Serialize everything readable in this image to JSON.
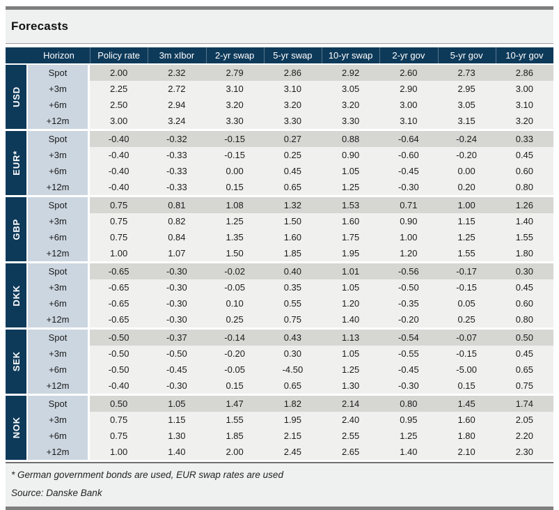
{
  "page": {
    "title": "Forecasts"
  },
  "table": {
    "headers": [
      "Horizon",
      "Policy rate",
      "3m xIbor",
      "2-yr swap",
      "5-yr swap",
      "10-yr swap",
      "2-yr gov",
      "5-yr gov",
      "10-yr gov"
    ],
    "groups": [
      {
        "currency": "USD",
        "rows": [
          {
            "horizon": "Spot",
            "values": [
              "2.00",
              "2.32",
              "2.79",
              "2.86",
              "2.92",
              "2.60",
              "2.73",
              "2.86"
            ]
          },
          {
            "horizon": "+3m",
            "values": [
              "2.25",
              "2.72",
              "3.10",
              "3.10",
              "3.05",
              "2.90",
              "2.95",
              "3.00"
            ]
          },
          {
            "horizon": "+6m",
            "values": [
              "2.50",
              "2.94",
              "3.20",
              "3.20",
              "3.20",
              "3.00",
              "3.05",
              "3.10"
            ]
          },
          {
            "horizon": "+12m",
            "values": [
              "3.00",
              "3.24",
              "3.30",
              "3.30",
              "3.30",
              "3.10",
              "3.15",
              "3.20"
            ]
          }
        ]
      },
      {
        "currency": "EUR*",
        "rows": [
          {
            "horizon": "Spot",
            "values": [
              "-0.40",
              "-0.32",
              "-0.15",
              "0.27",
              "0.88",
              "-0.64",
              "-0.24",
              "0.33"
            ]
          },
          {
            "horizon": "+3m",
            "values": [
              "-0.40",
              "-0.33",
              "-0.15",
              "0.25",
              "0.90",
              "-0.60",
              "-0.20",
              "0.45"
            ]
          },
          {
            "horizon": "+6m",
            "values": [
              "-0.40",
              "-0.33",
              "0.00",
              "0.45",
              "1.05",
              "-0.45",
              "0.00",
              "0.60"
            ]
          },
          {
            "horizon": "+12m",
            "values": [
              "-0.40",
              "-0.33",
              "0.15",
              "0.65",
              "1.25",
              "-0.30",
              "0.20",
              "0.80"
            ]
          }
        ]
      },
      {
        "currency": "GBP",
        "rows": [
          {
            "horizon": "Spot",
            "values": [
              "0.75",
              "0.81",
              "1.08",
              "1.32",
              "1.53",
              "0.71",
              "1.00",
              "1.26"
            ]
          },
          {
            "horizon": "+3m",
            "values": [
              "0.75",
              "0.82",
              "1.25",
              "1.50",
              "1.60",
              "0.90",
              "1.15",
              "1.40"
            ]
          },
          {
            "horizon": "+6m",
            "values": [
              "0.75",
              "0.84",
              "1.35",
              "1.60",
              "1.75",
              "1.00",
              "1.25",
              "1.55"
            ]
          },
          {
            "horizon": "+12m",
            "values": [
              "1.00",
              "1.07",
              "1.50",
              "1.85",
              "1.95",
              "1.20",
              "1.55",
              "1.80"
            ]
          }
        ]
      },
      {
        "currency": "DKK",
        "rows": [
          {
            "horizon": "Spot",
            "values": [
              "-0.65",
              "-0.30",
              "-0.02",
              "0.40",
              "1.01",
              "-0.56",
              "-0.17",
              "0.30"
            ]
          },
          {
            "horizon": "+3m",
            "values": [
              "-0.65",
              "-0.30",
              "-0.05",
              "0.35",
              "1.05",
              "-0.50",
              "-0.15",
              "0.45"
            ]
          },
          {
            "horizon": "+6m",
            "values": [
              "-0.65",
              "-0.30",
              "0.10",
              "0.55",
              "1.20",
              "-0.35",
              "0.05",
              "0.60"
            ]
          },
          {
            "horizon": "+12m",
            "values": [
              "-0.65",
              "-0.30",
              "0.25",
              "0.75",
              "1.40",
              "-0.20",
              "0.25",
              "0.80"
            ]
          }
        ]
      },
      {
        "currency": "SEK",
        "rows": [
          {
            "horizon": "Spot",
            "values": [
              "-0.50",
              "-0.37",
              "-0.14",
              "0.43",
              "1.13",
              "-0.54",
              "-0.07",
              "0.50"
            ]
          },
          {
            "horizon": "+3m",
            "values": [
              "-0.50",
              "-0.50",
              "-0.20",
              "0.30",
              "1.05",
              "-0.55",
              "-0.15",
              "0.45"
            ]
          },
          {
            "horizon": "+6m",
            "values": [
              "-0.50",
              "-0.45",
              "-0.05",
              "-4.50",
              "1.25",
              "-0.45",
              "-5.00",
              "0.65"
            ]
          },
          {
            "horizon": "+12m",
            "values": [
              "-0.40",
              "-0.30",
              "0.15",
              "0.65",
              "1.30",
              "-0.30",
              "0.15",
              "0.75"
            ]
          }
        ]
      },
      {
        "currency": "NOK",
        "rows": [
          {
            "horizon": "Spot",
            "values": [
              "0.50",
              "1.05",
              "1.47",
              "1.82",
              "2.14",
              "0.80",
              "1.45",
              "1.74"
            ]
          },
          {
            "horizon": "+3m",
            "values": [
              "0.75",
              "1.15",
              "1.55",
              "1.95",
              "2.40",
              "0.95",
              "1.60",
              "2.05"
            ]
          },
          {
            "horizon": "+6m",
            "values": [
              "0.75",
              "1.30",
              "1.85",
              "2.15",
              "2.55",
              "1.25",
              "1.80",
              "2.20"
            ]
          },
          {
            "horizon": "+12m",
            "values": [
              "1.00",
              "1.40",
              "2.00",
              "2.45",
              "2.65",
              "1.40",
              "2.10",
              "2.30"
            ]
          }
        ]
      }
    ]
  },
  "footer": {
    "note": "* German government bonds are used, EUR swap rates are used",
    "source": "Source: Danske Bank"
  },
  "colors": {
    "navy": "#0e3a5a",
    "horizon_bg": "#ccd6e0",
    "spot_bg": "#d6d6d3",
    "row_bg": "#f0f0ee",
    "band_bg": "#eff1f0",
    "bar_grey": "#7f7f7f"
  }
}
